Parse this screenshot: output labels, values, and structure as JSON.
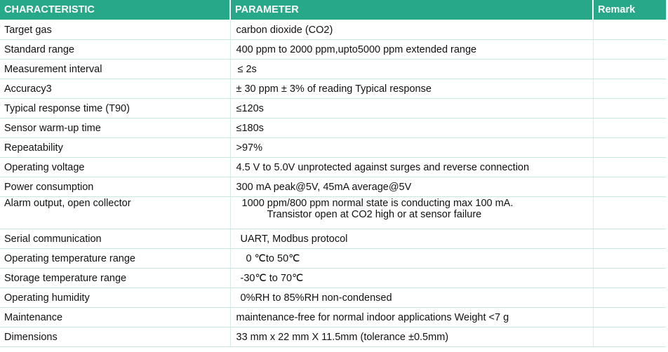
{
  "header": {
    "characteristic": "CHARACTERISTIC",
    "parameter": "PARAMETER",
    "remark": "Remark"
  },
  "rows": [
    {
      "characteristic": "Target gas",
      "parameter": [
        "carbon dioxide (CO2)"
      ],
      "remark": ""
    },
    {
      "characteristic": "Standard range",
      "parameter": [
        "400 ppm to 2000 ppm,upto5000 ppm extended range"
      ],
      "remark": ""
    },
    {
      "characteristic": "Measurement interval",
      "parameter": [
        "≤ 2s"
      ],
      "remark": ""
    },
    {
      "characteristic": "Accuracy3",
      "parameter": [
        "± 30 ppm ± 3% of reading  Typical response"
      ],
      "remark": ""
    },
    {
      "characteristic": "Typical response time (T90)",
      "parameter": [
        "≤120s"
      ],
      "remark": ""
    },
    {
      "characteristic": "Sensor warm-up time",
      "parameter": [
        "≤180s"
      ],
      "remark": ""
    },
    {
      "characteristic": "Repeatability",
      "parameter": [
        ">97%"
      ],
      "remark": ""
    },
    {
      "characteristic": "Operating voltage",
      "parameter": [
        "4.5 V to 5.0V unprotected against surges and reverse connection"
      ],
      "remark": ""
    },
    {
      "characteristic": "Power consumption",
      "parameter": [
        "300 mA peak@5V, 45mA average@5V"
      ],
      "remark": ""
    },
    {
      "characteristic": "Alarm output, open collector",
      "parameter": [
        "1000 ppm/800 ppm normal state is conducting max 100 mA.",
        "Transistor open at CO2 high or at sensor failure"
      ],
      "remark": ""
    },
    {
      "characteristic": "Serial communication",
      "parameter": [
        "UART, Modbus protocol"
      ],
      "remark": ""
    },
    {
      "characteristic": "Operating temperature range",
      "parameter": [
        "0 ℃to 50℃"
      ],
      "remark": ""
    },
    {
      "characteristic": "Storage temperature range",
      "parameter": [
        "-30℃ to 70℃"
      ],
      "remark": ""
    },
    {
      "characteristic": "Operating humidity",
      "parameter": [
        "0%RH to 85%RH non-condensed"
      ],
      "remark": ""
    },
    {
      "characteristic": "Maintenance",
      "parameter": [
        "maintenance-free for normal indoor applications Weight <7 g"
      ],
      "remark": ""
    },
    {
      "characteristic": "Dimensions",
      "parameter": [
        "33 mm x 22 mm X 11.5mm (tolerance ±0.5mm)"
      ],
      "remark": ""
    }
  ],
  "colors": {
    "header_bg": "#27a889",
    "header_text": "#ffffff",
    "row_divider": "#c9e7de"
  }
}
